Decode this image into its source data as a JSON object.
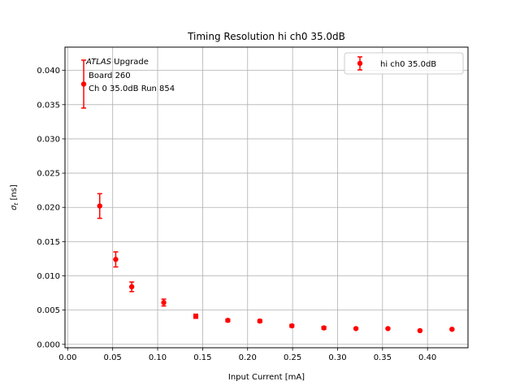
{
  "chart_data": {
    "type": "scatter",
    "title": "Timing Resolution hi ch0 35.0dB",
    "xlabel": "Input Current [mA]",
    "ylabel": "σ",
    "ylabel_sub": "t",
    "ylabel_unit": " [ns]",
    "xlim": [
      -0.003,
      0.445
    ],
    "ylim": [
      -0.0005,
      0.0434
    ],
    "x_ticks": [
      0.0,
      0.05,
      0.1,
      0.15,
      0.2,
      0.25,
      0.3,
      0.35,
      0.4
    ],
    "x_tick_labels": [
      "0.00",
      "0.05",
      "0.10",
      "0.15",
      "0.20",
      "0.25",
      "0.30",
      "0.35",
      "0.40"
    ],
    "y_ticks": [
      0.0,
      0.005,
      0.01,
      0.015,
      0.02,
      0.025,
      0.03,
      0.035,
      0.04
    ],
    "y_tick_labels": [
      "0.000",
      "0.005",
      "0.010",
      "0.015",
      "0.020",
      "0.025",
      "0.030",
      "0.035",
      "0.040"
    ],
    "grid": true,
    "legend_position": "top-right",
    "annotation": {
      "atlas": "ATLAS",
      "upgrade": " Upgrade",
      "line2": "Board 260",
      "line3": "Ch 0 35.0dB  Run 854"
    },
    "series": [
      {
        "name": "hi ch0 35.0dB",
        "color": "#ff0000",
        "x": [
          0.0178,
          0.0356,
          0.0534,
          0.0712,
          0.1068,
          0.1424,
          0.178,
          0.2136,
          0.2492,
          0.2848,
          0.3204,
          0.356,
          0.3916,
          0.4272
        ],
        "y": [
          0.038,
          0.0202,
          0.0124,
          0.0084,
          0.0061,
          0.0041,
          0.0035,
          0.0034,
          0.0027,
          0.0024,
          0.0023,
          0.0023,
          0.002,
          0.0022
        ],
        "yerr": [
          0.0035,
          0.0018,
          0.0011,
          0.0007,
          0.0005,
          0.0003,
          0.0002,
          0.0002,
          0.0002,
          0.0002,
          0.0001,
          0.0001,
          0.0001,
          0.0001
        ]
      }
    ]
  }
}
